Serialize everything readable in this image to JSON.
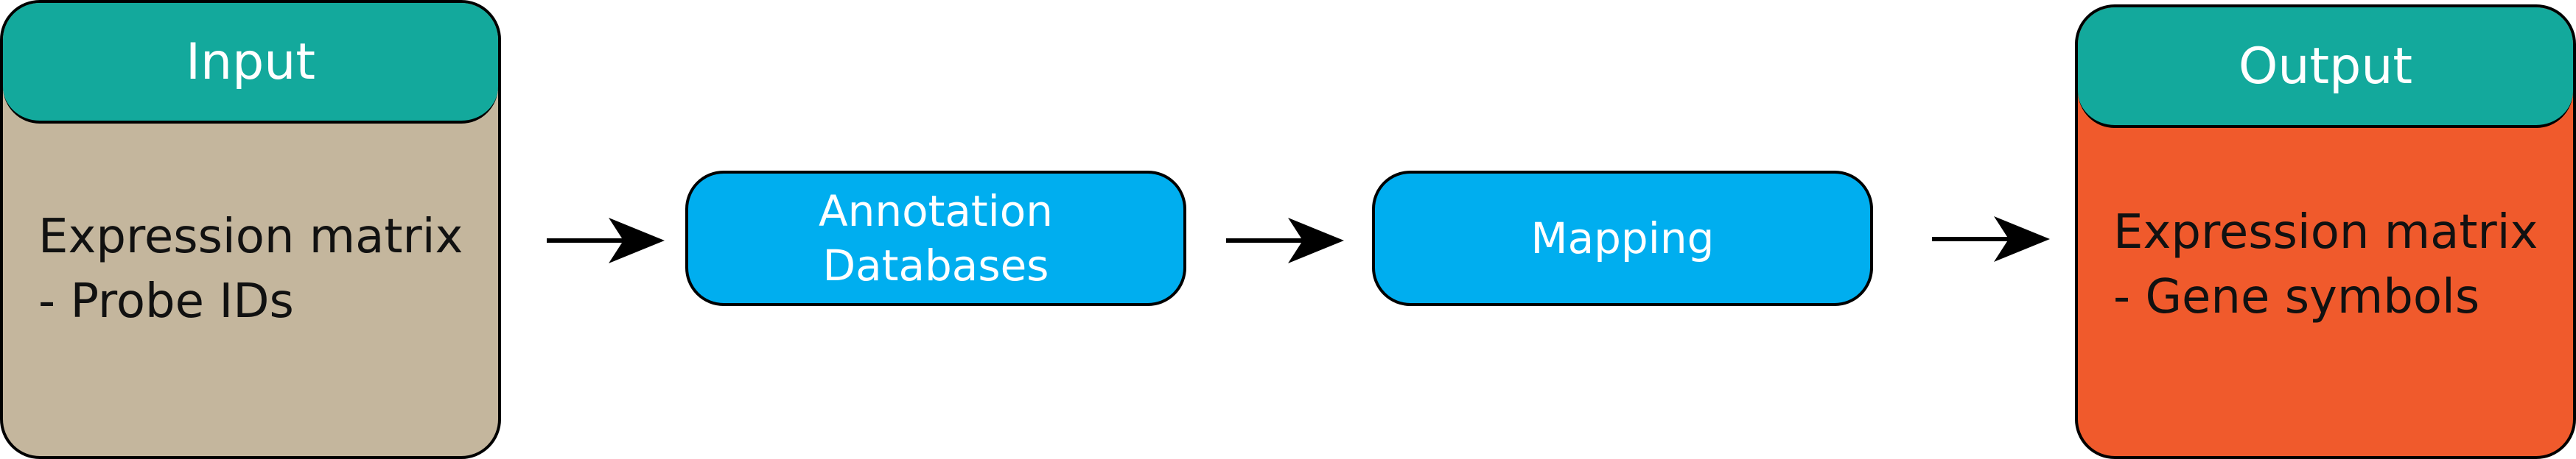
{
  "input": {
    "title": "Input",
    "lines": [
      "Expression matrix",
      "- Probe IDs"
    ]
  },
  "steps": [
    {
      "label_lines": [
        "Annotation",
        "Databases"
      ]
    },
    {
      "label_lines": [
        "Mapping"
      ]
    }
  ],
  "output": {
    "title": "Output",
    "lines": [
      "Expression matrix",
      "- Gene symbols"
    ]
  },
  "colors": {
    "input_body": "#c4b69d",
    "header": "#13a99c",
    "step": "#00aeef",
    "output_body": "#f05a2c"
  }
}
